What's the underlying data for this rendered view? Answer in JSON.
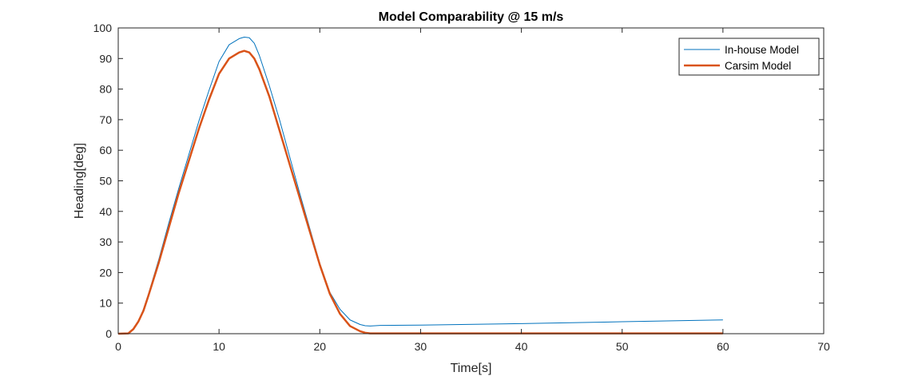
{
  "chart_data": {
    "type": "line",
    "title": "Model Comparability @ 15 m/s",
    "xlabel": "Time[s]",
    "ylabel": "Heading[deg]",
    "xlim": [
      0,
      70
    ],
    "ylim": [
      0,
      100
    ],
    "xticks": [
      "0",
      "10",
      "20",
      "30",
      "40",
      "50",
      "60",
      "70"
    ],
    "yticks": [
      "0",
      "10",
      "20",
      "30",
      "40",
      "50",
      "60",
      "70",
      "80",
      "90",
      "100"
    ],
    "grid": false,
    "legend_position": "top-right",
    "series": [
      {
        "name": "In-house Model",
        "color": "#0072BD",
        "x": [
          0,
          1,
          1.5,
          2,
          2.5,
          3,
          4,
          5,
          6,
          7,
          8,
          9,
          10,
          11,
          12,
          12.5,
          13,
          13.5,
          14,
          15,
          16,
          17,
          18,
          19,
          20,
          21,
          22,
          23,
          24,
          24.5,
          25,
          25.5,
          26,
          30,
          40,
          50,
          60
        ],
        "y": [
          0,
          0.2,
          1.5,
          4,
          8,
          13,
          24,
          36,
          47.5,
          58.5,
          69.5,
          79.5,
          89,
          94.5,
          96.5,
          97,
          96.8,
          95,
          91,
          81,
          70,
          58,
          46,
          34.5,
          23,
          13.5,
          8,
          4.5,
          3,
          2.6,
          2.5,
          2.6,
          2.7,
          2.8,
          3.3,
          3.9,
          4.5
        ]
      },
      {
        "name": "Carsim Model",
        "color": "#D95319",
        "x": [
          0,
          1,
          1.5,
          2,
          2.5,
          3,
          4,
          5,
          6,
          7,
          8,
          9,
          10,
          11,
          12,
          12.5,
          13,
          13.5,
          14,
          15,
          16,
          17,
          18,
          19,
          20,
          21,
          22,
          23,
          24,
          24.5,
          25,
          25.5,
          26,
          30,
          40,
          50,
          60
        ],
        "y": [
          0,
          0.1,
          1.5,
          4,
          7.5,
          12.5,
          23,
          34.5,
          46,
          56.5,
          67,
          76.5,
          85,
          90,
          92,
          92.5,
          92,
          90,
          86.5,
          77.5,
          66.5,
          55.5,
          44.5,
          33.5,
          22.5,
          13,
          6.5,
          2.5,
          0.8,
          0.3,
          0.1,
          0.1,
          0.1,
          0.1,
          0.1,
          0.1,
          0.1
        ]
      }
    ]
  }
}
